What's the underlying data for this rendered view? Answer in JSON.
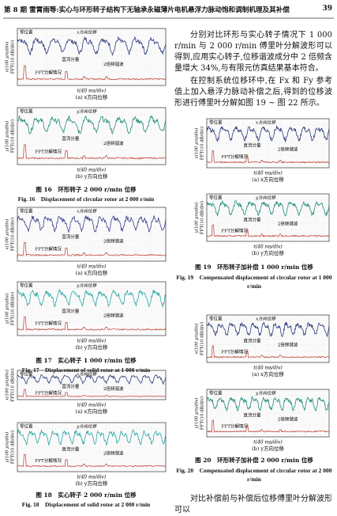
{
  "header": {
    "title": "第 8 期 雷霄雨等:实心与环形转子结构下无轴承永磁薄片电机悬浮力脉动饱和调制机理及其补偿",
    "page": "39"
  },
  "text": {
    "paragraphs": [
      "分别对比环形与实心转子情况下 1 000 r/min 与 2 000 r/min 傅里叶分解波形可以得到,应用实心转子,位移谐波成分中 2 倍频含量增大 34%,与有限元仿真结果基本符合。",
      "在控制系统位移环中,在 Fx 和 Fy 参考值上加入悬浮力脉动补偿之后,得到的位移波形进行傅里叶分解如图 19 ~ 图 22 所示。"
    ],
    "closing": "对比补偿前与补偿后位移傅里叶分解波形可以"
  },
  "figures": [
    {
      "caption_cn": "图 16　环形转子 2 000 r/min 位移",
      "caption_en": "Fig. 16　Displacement of circular rotor at 2 000 r/min",
      "panels": [
        {
          "zero": "零位置",
          "direction": "x方向位移",
          "dc": "直流分量",
          "harmonic": "2倍频谐波",
          "fft": "FFT分解情况",
          "ylabel_top": "x(100 μm/div)",
          "ylabel_bottom": "FFT(10 dB/div)",
          "xlabel": "t(40 ms/div)",
          "caption": "(a) x方向位移",
          "trace_color": "#2b3a7a"
        },
        {
          "zero": "零位置",
          "direction": "y方向位移",
          "dc": "直流分量",
          "harmonic": "2倍频谐波",
          "fft": "FFT分解情况",
          "ylabel_top": "y(100 μm/div)",
          "ylabel_bottom": "FFT(10 dB/div)",
          "xlabel": "t(40 ms/div)",
          "caption": "(b) y方向位移",
          "trace_color": "#1f8a7a"
        }
      ]
    },
    {
      "caption_cn": "图 17　实心转子 1 000 r/min 位移",
      "caption_en": "Fig. 17　Displacement of solid rotor at 1 000 r/min",
      "panels": [
        {
          "zero": "零位置",
          "direction": "x方向位移",
          "dc": "直流分量",
          "harmonic": "2倍频谐波",
          "fft": "FFT分解情况",
          "ylabel_top": "x(100 μm/div)",
          "ylabel_bottom": "FFT(10 dB/div)",
          "xlabel": "t(40 ms/div)",
          "caption": "(a) x方向位移",
          "trace_color": "#3a3a8a"
        },
        {
          "zero": "零位置",
          "direction": "y方向位移",
          "dc": "直流分量",
          "harmonic": "2倍频谐波",
          "fft": "FFT分解情况",
          "ylabel_top": "y(100 μm/div)",
          "ylabel_bottom": "FFT(10 dB/div)",
          "xlabel": "t(40 ms/div)",
          "caption": "(b) y方向位移",
          "trace_color": "#2aa5a5"
        }
      ]
    },
    {
      "caption_cn": "图 18　实心转子 2 000 r/min 位移",
      "caption_en": "Fig. 18　Displacement of solid rotor at 2 000 r/min",
      "panels": [
        {
          "zero": "零位置",
          "direction": "x方向位移",
          "dc": "直流分量",
          "harmonic": "2倍频谐波",
          "fft": "FFT分解情况",
          "ylabel_top": "x(100 μm/div)",
          "ylabel_bottom": "FFT(10 dB/div)",
          "xlabel": "t(40 ms/div)",
          "caption": "(a) x方向位移",
          "trace_color": "#2b3a7a"
        },
        {
          "zero": "零位置",
          "direction": "y方向位移",
          "dc": "直流分量",
          "harmonic": "2倍频谐波",
          "fft": "FFT分解情况",
          "ylabel_top": "y(100 μm/div)",
          "ylabel_bottom": "FFT(10 dB/div)",
          "xlabel": "t(40 ms/div)",
          "caption": "(b) y方向位移",
          "trace_color": "#2aa5a5"
        }
      ]
    },
    {
      "caption_cn": "图 19　环形转子加补偿 1 000 r/min 位移",
      "caption_en": "Fig. 19　Compensated displacement of circular rotor at 1 000 r/min",
      "panels": [
        {
          "zero": "零位置",
          "direction": "x方向位移",
          "dc": "直流分量",
          "harmonic": "2倍频谐波",
          "fft": "FFT分解情况",
          "ylabel_top": "x(100 μm/div)",
          "ylabel_bottom": "FFT(10 dB/div)",
          "xlabel": "t(40 ms/div)",
          "caption": "(a) x方向位移",
          "trace_color": "#2b3a7a"
        },
        {
          "zero": "零位置",
          "direction": "y方向位移",
          "dc": "直流分量",
          "harmonic": "2倍频谐波",
          "fft": "FFT分解情况",
          "ylabel_top": "y(100 μm/div)",
          "ylabel_bottom": "FFT(10 dB/div)",
          "xlabel": "t(40 ms/div)",
          "caption": "(b) y方向位移",
          "trace_color": "#1f8a7a"
        }
      ]
    },
    {
      "caption_cn": "图 20　环形转子加补偿 2 000 r/min 位移",
      "caption_en": "Fig. 20　Compensated displacement of circular rotor at 2 000 r/min",
      "panels": [
        {
          "zero": "零位置",
          "direction": "x方向位移",
          "dc": "直流分量",
          "harmonic": "2倍频谐波",
          "fft": "FFT分解情况",
          "ylabel_top": "x(100 μm/div)",
          "ylabel_bottom": "FFT(10 dB/div)",
          "xlabel": "t(40 ms/div)",
          "caption": "(a) x方向位移",
          "trace_color": "#2b3a7a"
        },
        {
          "zero": "零位置",
          "direction": "y方向位移",
          "dc": "直流分量",
          "harmonic": "2倍频谐波",
          "fft": "FFT分解情况",
          "ylabel_top": "y(100 μm/div)",
          "ylabel_bottom": "FFT(10 dB/div)",
          "xlabel": "t(40 ms/div)",
          "caption": "(b) y方向位移",
          "trace_color": "#1f8a7a"
        }
      ]
    }
  ]
}
